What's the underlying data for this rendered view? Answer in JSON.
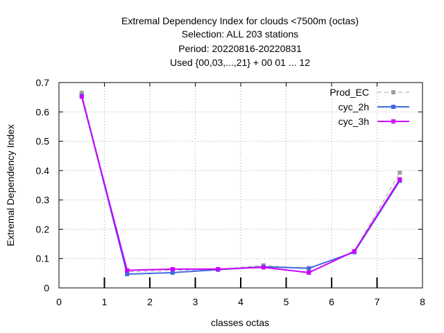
{
  "chart_data": {
    "type": "line",
    "title_lines": [
      "Extremal Dependency Index  for clouds <7500m (octas)",
      "Selection: ALL    203 stations",
      "Period: 20220816-20220831",
      "Used {00,03,...,21} + 00 01 ... 12"
    ],
    "xlabel": "classes octas",
    "ylabel": "Extremal Dependency Index",
    "xlim": [
      0,
      8
    ],
    "ylim": [
      0,
      0.7
    ],
    "xticks": [
      "0",
      "1",
      "2",
      "3",
      "4",
      "5",
      "6",
      "7",
      "8"
    ],
    "yticks": [
      "0",
      "0.1",
      "0.2",
      "0.3",
      "0.4",
      "0.5",
      "0.6",
      "0.7"
    ],
    "grid": true,
    "legend_position": "top-right",
    "x": [
      0.5,
      1.5,
      2.5,
      3.5,
      4.5,
      5.5,
      6.5,
      7.5
    ],
    "series": [
      {
        "name": "Prod_EC",
        "color": "#a0a0a0",
        "dashed": true,
        "values": [
          0.665,
          0.055,
          0.06,
          0.063,
          0.077,
          0.065,
          0.125,
          0.393
        ]
      },
      {
        "name": "cyc_2h",
        "color": "#4169e1",
        "dashed": false,
        "values": [
          0.655,
          0.047,
          0.052,
          0.062,
          0.072,
          0.067,
          0.122,
          0.365
        ]
      },
      {
        "name": "cyc_3h",
        "color": "#cc00ff",
        "dashed": false,
        "values": [
          0.652,
          0.06,
          0.064,
          0.064,
          0.07,
          0.052,
          0.125,
          0.37
        ]
      }
    ]
  }
}
